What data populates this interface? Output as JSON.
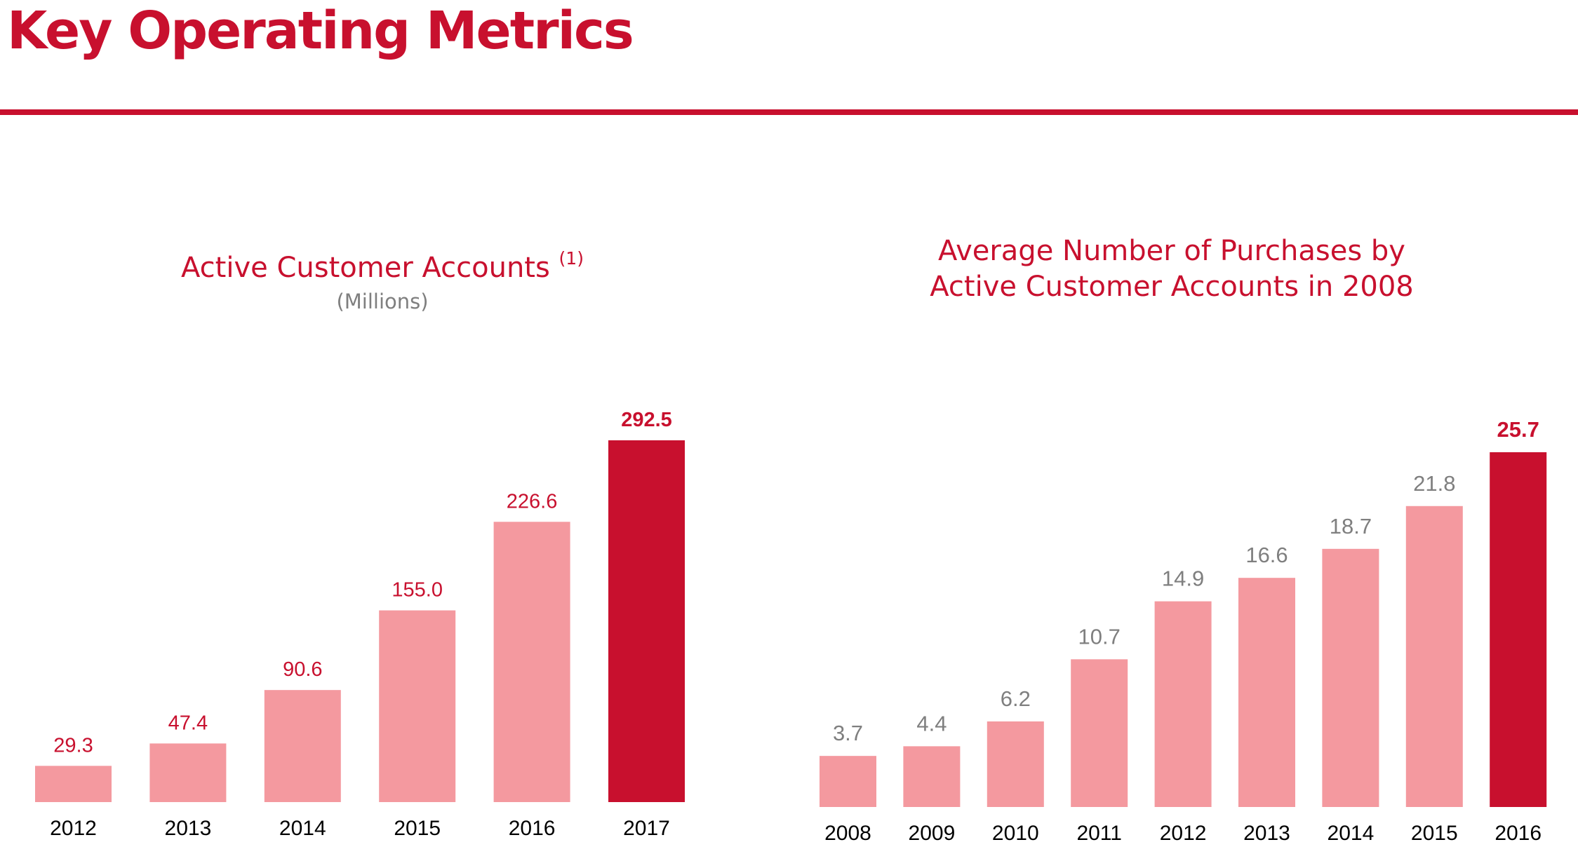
{
  "page": {
    "title": "Key Operating Metrics"
  },
  "colors": {
    "brand": "#c8102e",
    "bar_light": "#f4999f",
    "bar_highlight": "#c8102e",
    "label_light_chart1": "#c8102e",
    "label_gray": "#7f7f7f",
    "tick": "#000000"
  },
  "chart_data": [
    {
      "type": "bar",
      "title": "Active Customer Accounts",
      "title_footnote": "(1)",
      "subtitle": "(Millions)",
      "categories": [
        "2012",
        "2013",
        "2014",
        "2015",
        "2016",
        "2017"
      ],
      "values": [
        29.3,
        47.4,
        90.6,
        155.0,
        226.6,
        292.5
      ],
      "value_labels": [
        "29.3",
        "47.4",
        "90.6",
        "155.0",
        "226.6",
        "292.5"
      ],
      "highlight_index": 5,
      "xlabel": "",
      "ylabel": "",
      "ylim": [
        0,
        292.5
      ],
      "grid": false
    },
    {
      "type": "bar",
      "title": "Average Number of Purchases by",
      "title_line2": "Active Customer Accounts in 2008",
      "categories": [
        "2008",
        "2009",
        "2010",
        "2011",
        "2012",
        "2013",
        "2014",
        "2015",
        "2016"
      ],
      "values": [
        3.7,
        4.4,
        6.2,
        10.7,
        14.9,
        16.6,
        18.7,
        21.8,
        25.7
      ],
      "value_labels": [
        "3.7",
        "4.4",
        "6.2",
        "10.7",
        "14.9",
        "16.6",
        "18.7",
        "21.8",
        "25.7"
      ],
      "highlight_index": 8,
      "xlabel": "",
      "ylabel": "",
      "ylim": [
        0,
        25.7
      ],
      "grid": false
    }
  ]
}
